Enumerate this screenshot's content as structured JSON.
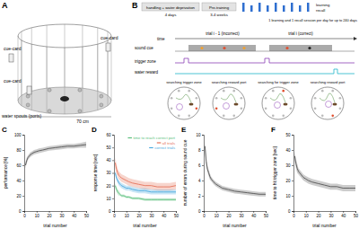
{
  "chart_data": [
    {
      "type": "line",
      "title": "C",
      "xlabel": "trial number",
      "ylabel": "performance [%]",
      "x": [
        1,
        2,
        3,
        4,
        5,
        6,
        8,
        10,
        12,
        15,
        20,
        25,
        30,
        35,
        40,
        45,
        50
      ],
      "series": [
        {
          "color": "#555555",
          "values": [
            60,
            66,
            70,
            72,
            74,
            75,
            77,
            78,
            79,
            80,
            82,
            83,
            84,
            85,
            85,
            86,
            87
          ],
          "error": [
            4,
            4,
            3,
            3,
            3,
            3,
            3,
            3,
            3,
            3,
            3,
            3,
            3,
            3,
            3,
            3,
            4
          ]
        }
      ],
      "xlim": [
        0,
        50
      ],
      "ylim": [
        0,
        100
      ],
      "xticks": [
        0,
        10,
        20,
        30,
        40,
        50
      ],
      "yticks": [
        0,
        20,
        40,
        60,
        80,
        100
      ]
    },
    {
      "type": "line",
      "title": "D",
      "xlabel": "trial number",
      "ylabel": "response time [sec]",
      "x": [
        1,
        2,
        3,
        4,
        5,
        6,
        8,
        10,
        12,
        15,
        20,
        25,
        30,
        35,
        40,
        45,
        50
      ],
      "series": [
        {
          "name": "time to reach correct port",
          "color": "#5cbf7e",
          "values": [
            20,
            17,
            15,
            14,
            13,
            12,
            12,
            11,
            11,
            10,
            10,
            9,
            9,
            9,
            9,
            9,
            9
          ],
          "error": [
            2,
            2,
            2,
            2,
            1,
            1,
            1,
            1,
            1,
            1,
            1,
            1,
            1,
            1,
            1,
            1,
            1
          ]
        },
        {
          "name": "all trials",
          "color": "#e5735a",
          "values": [
            38,
            33,
            30,
            28,
            27,
            26,
            25,
            24,
            23,
            22,
            21,
            20,
            20,
            19,
            19,
            19,
            20
          ],
          "error": [
            4,
            4,
            3,
            3,
            3,
            3,
            3,
            3,
            3,
            3,
            3,
            3,
            3,
            3,
            3,
            3,
            3
          ]
        },
        {
          "name": "correct trials",
          "color": "#4aa8de",
          "values": [
            30,
            26,
            24,
            22,
            21,
            20,
            19,
            18,
            18,
            17,
            16,
            16,
            15,
            15,
            15,
            15,
            15
          ],
          "error": [
            2,
            2,
            2,
            2,
            2,
            2,
            2,
            2,
            2,
            2,
            2,
            2,
            2,
            2,
            2,
            2,
            2
          ]
        }
      ],
      "legend": "upper right",
      "xlim": [
        0,
        50
      ],
      "ylim": [
        0,
        60
      ],
      "xticks": [
        0,
        10,
        20,
        30,
        40,
        50
      ],
      "yticks": [
        0,
        10,
        20,
        30,
        40,
        50,
        60
      ]
    },
    {
      "type": "line",
      "title": "E",
      "xlabel": "trial number",
      "ylabel": "number of errors during sound cue",
      "x": [
        1,
        2,
        3,
        4,
        5,
        6,
        8,
        10,
        12,
        15,
        20,
        25,
        30,
        35,
        40,
        45,
        50
      ],
      "series": [
        {
          "color": "#555555",
          "values": [
            8.5,
            6.5,
            5.5,
            5,
            4.5,
            4.2,
            3.8,
            3.5,
            3.3,
            3,
            2.8,
            2.6,
            2.5,
            2.4,
            2.3,
            2.2,
            2.2
          ],
          "error": [
            0.6,
            0.5,
            0.4,
            0.4,
            0.4,
            0.3,
            0.3,
            0.3,
            0.3,
            0.3,
            0.3,
            0.3,
            0.3,
            0.3,
            0.3,
            0.3,
            0.3
          ]
        }
      ],
      "xlim": [
        0,
        50
      ],
      "ylim": [
        0,
        10
      ],
      "xticks": [
        0,
        10,
        20,
        30,
        40,
        50
      ],
      "yticks": [
        0,
        2,
        4,
        6,
        8,
        10
      ]
    },
    {
      "type": "line",
      "title": "F",
      "xlabel": "trial number",
      "ylabel": "time to hit trigger zone [sec]",
      "x": [
        1,
        2,
        3,
        4,
        5,
        6,
        8,
        10,
        12,
        15,
        20,
        25,
        30,
        35,
        40,
        45,
        50
      ],
      "series": [
        {
          "color": "#555555",
          "values": [
            36,
            31,
            28,
            26,
            25,
            24,
            22,
            21,
            20,
            19,
            18,
            17,
            16,
            16,
            15,
            15,
            15
          ],
          "error": [
            3,
            3,
            3,
            2,
            2,
            2,
            2,
            2,
            2,
            2,
            2,
            2,
            2,
            2,
            2,
            2,
            2
          ]
        }
      ],
      "xlim": [
        0,
        50
      ],
      "ylim": [
        0,
        50
      ],
      "xticks": [
        0,
        10,
        20,
        30,
        40,
        50
      ],
      "yticks": [
        0,
        10,
        20,
        30,
        40,
        50
      ]
    }
  ],
  "diagram_a": {
    "label": "A",
    "cue_cards": [
      "cue-card",
      "cue-card",
      "cue-card"
    ],
    "ports_label": "water spouts (ports)",
    "size_label": "70 cm"
  },
  "diagram_b": {
    "label": "B",
    "stages": [
      {
        "name": "handling + water deprivation",
        "duration": "4 days"
      },
      {
        "name": "Pre-training",
        "duration": "3-4 weeks"
      }
    ],
    "learning": "learning",
    "recall": "recall",
    "schedule": "1 learning and 1 recall session per day for up to 240 days",
    "time": "time",
    "trials": [
      "trial i - 1 (incorrect)",
      "trial i (correct)"
    ],
    "signals": [
      "sound cue",
      "trigger zone",
      "water reward"
    ],
    "phases": [
      "searching trigger zone",
      "searching reward port",
      "searching for trigger zone",
      "searching reward port"
    ]
  }
}
